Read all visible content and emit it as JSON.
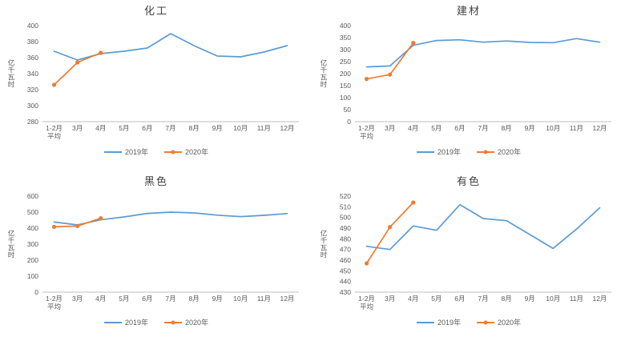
{
  "page": {
    "background": "#ffffff"
  },
  "colors": {
    "series2019": "#5B9BD5",
    "series2020": "#ED7D31",
    "tick_text": "#595959",
    "axis_line": "#BFBFBF"
  },
  "legend": {
    "label2019": "2019年",
    "label2020": "2020年",
    "position": "bottom"
  },
  "chart_data": [
    {
      "type": "line",
      "title": "化工",
      "ylabel": "亿千瓦时",
      "categories": [
        "1-2月",
        "3月",
        "4月",
        "5月",
        "6月",
        "7月",
        "8月",
        "9月",
        "10月",
        "11月",
        "12月"
      ],
      "x_sub_label": "平均",
      "ylim": [
        280,
        400
      ],
      "ytick": 20,
      "grid": false,
      "legend_position": "bottom",
      "series": [
        {
          "name": "2019年",
          "color": "#5B9BD5",
          "marker": false,
          "values": [
            368,
            357,
            365,
            368,
            372,
            390,
            375,
            362,
            361,
            367,
            375
          ]
        },
        {
          "name": "2020年",
          "color": "#ED7D31",
          "marker": true,
          "values": [
            326,
            354,
            366,
            null,
            null,
            null,
            null,
            null,
            null,
            null,
            null
          ]
        }
      ]
    },
    {
      "type": "line",
      "title": "建材",
      "ylabel": "亿千瓦时",
      "categories": [
        "1-2月",
        "3月",
        "4月",
        "5月",
        "6月",
        "7月",
        "8月",
        "9月",
        "10月",
        "11月",
        "12月"
      ],
      "x_sub_label": "平均",
      "ylim": [
        0,
        400
      ],
      "ytick": 50,
      "grid": false,
      "legend_position": "bottom",
      "series": [
        {
          "name": "2019年",
          "color": "#5B9BD5",
          "marker": false,
          "values": [
            228,
            232,
            318,
            338,
            341,
            331,
            336,
            330,
            329,
            346,
            331
          ]
        },
        {
          "name": "2020年",
          "color": "#ED7D31",
          "marker": true,
          "values": [
            178,
            196,
            328,
            null,
            null,
            null,
            null,
            null,
            null,
            null,
            null
          ]
        }
      ]
    },
    {
      "type": "line",
      "title": "黑色",
      "ylabel": "亿千瓦时",
      "categories": [
        "1-2月",
        "3月",
        "4月",
        "5月",
        "6月",
        "7月",
        "8月",
        "9月",
        "10月",
        "11月",
        "12月"
      ],
      "x_sub_label": "平均",
      "ylim": [
        0,
        600
      ],
      "ytick": 100,
      "grid": false,
      "legend_position": "bottom",
      "series": [
        {
          "name": "2019年",
          "color": "#5B9BD5",
          "marker": false,
          "values": [
            438,
            420,
            452,
            470,
            492,
            500,
            495,
            481,
            472,
            480,
            491
          ]
        },
        {
          "name": "2020年",
          "color": "#ED7D31",
          "marker": true,
          "values": [
            408,
            413,
            462,
            null,
            null,
            null,
            null,
            null,
            null,
            null,
            null
          ]
        }
      ]
    },
    {
      "type": "line",
      "title": "有色",
      "ylabel": "亿千瓦时",
      "categories": [
        "1-2月",
        "3月",
        "4月",
        "5月",
        "6月",
        "7月",
        "8月",
        "9月",
        "10月",
        "11月",
        "12月"
      ],
      "x_sub_label": "平均",
      "ylim": [
        430,
        520
      ],
      "ytick": 10,
      "grid": false,
      "legend_position": "bottom",
      "series": [
        {
          "name": "2019年",
          "color": "#5B9BD5",
          "marker": false,
          "values": [
            473,
            470,
            492,
            488,
            512,
            499,
            497,
            484,
            471,
            489,
            509
          ]
        },
        {
          "name": "2020年",
          "color": "#ED7D31",
          "marker": true,
          "values": [
            457,
            491,
            514,
            null,
            null,
            null,
            null,
            null,
            null,
            null,
            null
          ]
        }
      ]
    }
  ]
}
